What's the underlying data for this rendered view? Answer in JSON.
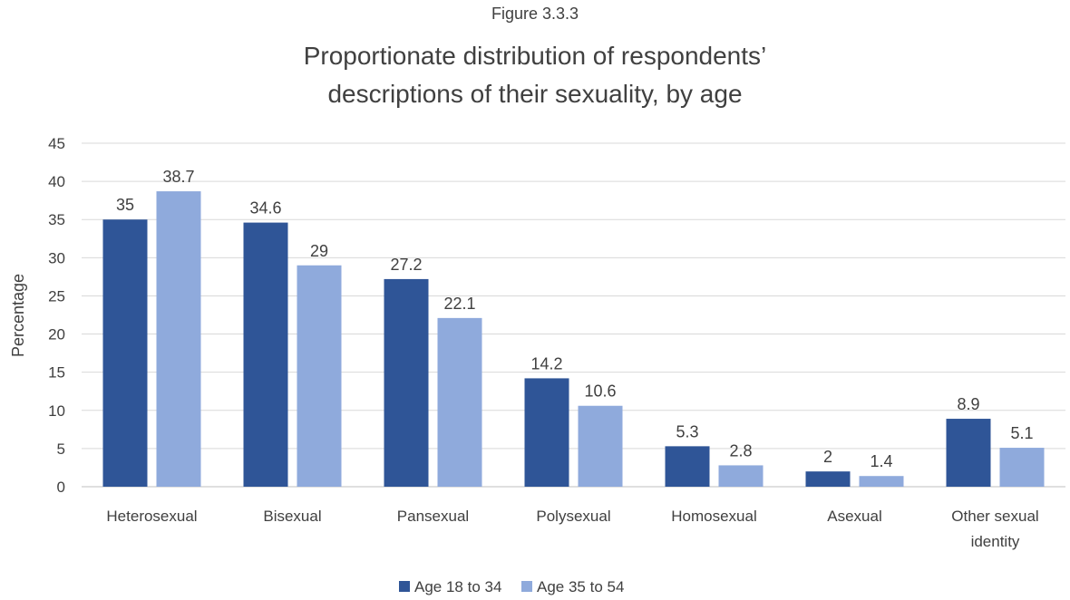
{
  "figure_label": "Figure 3.3.3",
  "title_line1": "Proportionate distribution of respondents’",
  "title_line2": "descriptions of their sexuality, by age",
  "chart_data": {
    "type": "bar",
    "title": "Proportionate distribution of respondents’ descriptions of their sexuality, by age",
    "xlabel": "",
    "ylabel": "Percentage",
    "ylim": [
      0,
      45
    ],
    "yticks": [
      0,
      5,
      10,
      15,
      20,
      25,
      30,
      35,
      40,
      45
    ],
    "grid": true,
    "legend_position": "bottom",
    "categories": [
      [
        "Heterosexual"
      ],
      [
        "Bisexual"
      ],
      [
        "Pansexual"
      ],
      [
        "Polysexual"
      ],
      [
        "Homosexual"
      ],
      [
        "Asexual"
      ],
      [
        "Other sexual",
        "identity"
      ]
    ],
    "series": [
      {
        "name": "Age 18 to 34",
        "color": "#2F5597",
        "values": [
          35,
          34.6,
          27.2,
          14.2,
          5.3,
          2,
          8.9
        ]
      },
      {
        "name": "Age 35 to 54",
        "color": "#8FAADC",
        "values": [
          38.7,
          29,
          22.1,
          10.6,
          2.8,
          1.4,
          5.1
        ]
      }
    ]
  }
}
